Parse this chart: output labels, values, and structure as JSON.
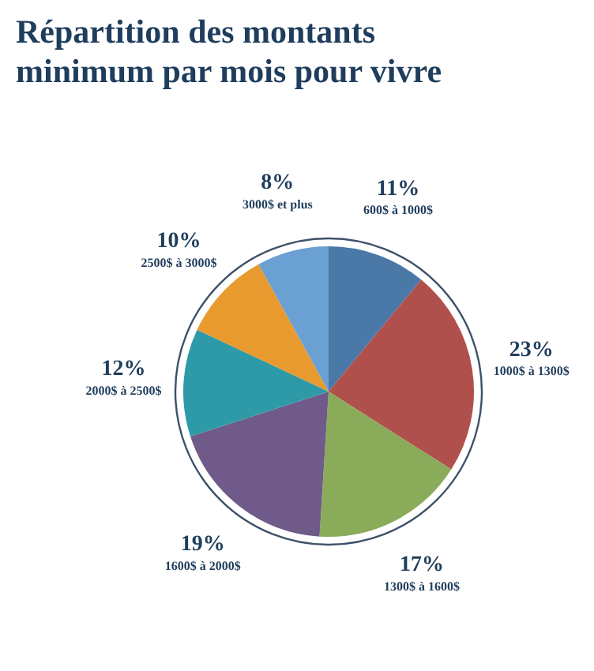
{
  "chart_data": {
    "type": "pie",
    "title": "Répartition des montants minimum par mois pour vivre",
    "categories": [
      "600$ à 1000$",
      "1000$ à 1300$",
      "1300$ à 1600$",
      "1600$ à 2000$",
      "2000$ à 2500$",
      "2500$ à 3000$",
      "3000$ et plus"
    ],
    "values": [
      11,
      23,
      17,
      19,
      12,
      10,
      8
    ],
    "value_labels": [
      "11%",
      "23%",
      "17%",
      "19%",
      "12%",
      "10%",
      "8%"
    ],
    "colors": [
      "#4a79a8",
      "#b0504c",
      "#8aab5a",
      "#705a8a",
      "#2e9aa8",
      "#e89a2e",
      "#6aa0d2"
    ],
    "legend": false
  }
}
